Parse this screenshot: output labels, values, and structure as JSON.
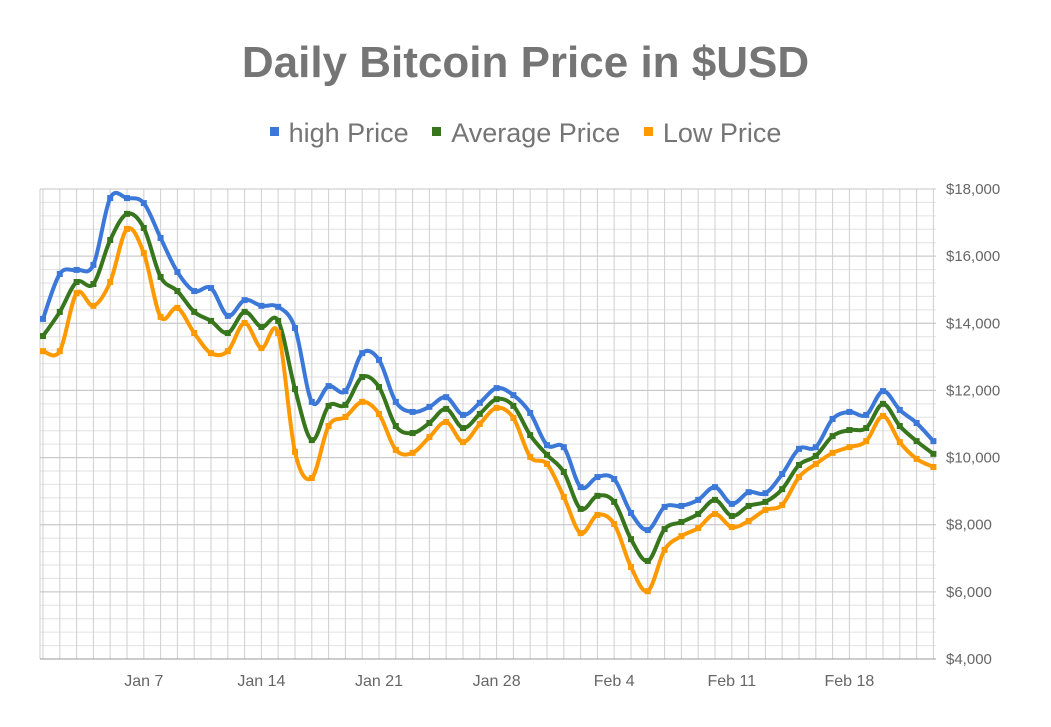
{
  "chart_data": {
    "type": "line",
    "title": "Daily Bitcoin Price in $USD",
    "legend_position": "top",
    "grid": true,
    "x": [
      "Jan 1",
      "Jan 2",
      "Jan 3",
      "Jan 4",
      "Jan 5",
      "Jan 6",
      "Jan 7",
      "Jan 8",
      "Jan 9",
      "Jan 10",
      "Jan 11",
      "Jan 12",
      "Jan 13",
      "Jan 14",
      "Jan 15",
      "Jan 16",
      "Jan 17",
      "Jan 18",
      "Jan 19",
      "Jan 20",
      "Jan 21",
      "Jan 22",
      "Jan 23",
      "Jan 24",
      "Jan 25",
      "Jan 26",
      "Jan 27",
      "Jan 28",
      "Jan 29",
      "Jan 30",
      "Jan 31",
      "Feb 1",
      "Feb 2",
      "Feb 3",
      "Feb 4",
      "Feb 5",
      "Feb 6",
      "Feb 7",
      "Feb 8",
      "Feb 9",
      "Feb 10",
      "Feb 11",
      "Feb 12",
      "Feb 13",
      "Feb 14",
      "Feb 15",
      "Feb 16",
      "Feb 17",
      "Feb 18",
      "Feb 19",
      "Feb 20",
      "Feb 21",
      "Feb 22",
      "Feb 23"
    ],
    "x_tick_labels": [
      "Jan 7",
      "Jan 14",
      "Jan 21",
      "Jan 28",
      "Feb 4",
      "Feb 11",
      "Feb 18"
    ],
    "y_tick_labels": [
      "$4,000",
      "$6,000",
      "$8,000",
      "$10,000",
      "$12,000",
      "$14,000",
      "$16,000",
      "$18,000"
    ],
    "ylim": [
      4000,
      18000
    ],
    "y_axis_side": "right",
    "series": [
      {
        "name": "high Price",
        "color": "#3c78d8",
        "values": [
          14130,
          15470,
          15590,
          15740,
          17730,
          17730,
          17580,
          16540,
          15530,
          14960,
          15050,
          14220,
          14690,
          14520,
          14490,
          13860,
          11660,
          12130,
          11980,
          13110,
          12910,
          11660,
          11360,
          11510,
          11800,
          11270,
          11630,
          12070,
          11860,
          11330,
          10370,
          10310,
          9120,
          9420,
          9360,
          8350,
          7840,
          8530,
          8560,
          8740,
          9120,
          8620,
          8970,
          8940,
          9510,
          10260,
          10310,
          11150,
          11360,
          11270,
          11980,
          11420,
          11030,
          10490
        ]
      },
      {
        "name": "Average Price",
        "color": "#38761d",
        "values": [
          13620,
          14340,
          15230,
          15170,
          16480,
          17260,
          16840,
          15380,
          14960,
          14340,
          14070,
          13710,
          14340,
          13890,
          14070,
          12040,
          10520,
          11540,
          11570,
          12400,
          12100,
          10940,
          10730,
          11030,
          11450,
          10880,
          11300,
          11740,
          11540,
          10670,
          10080,
          9570,
          8470,
          8860,
          8680,
          7570,
          6920,
          7870,
          8080,
          8320,
          8740,
          8260,
          8560,
          8680,
          9060,
          9780,
          10050,
          10640,
          10820,
          10880,
          11600,
          10940,
          10490,
          10110
        ]
      },
      {
        "name": "Low Price",
        "color": "#ff9900",
        "values": [
          13170,
          13170,
          14900,
          14520,
          15230,
          16810,
          16090,
          14190,
          14460,
          13710,
          13110,
          13170,
          14010,
          13260,
          13710,
          10170,
          9390,
          10940,
          11210,
          11660,
          11300,
          10230,
          10140,
          10610,
          11060,
          10460,
          11000,
          11480,
          11180,
          10020,
          9810,
          8830,
          7750,
          8290,
          8020,
          6740,
          6020,
          7250,
          7660,
          7900,
          8320,
          7930,
          8110,
          8440,
          8590,
          9420,
          9810,
          10140,
          10310,
          10490,
          11240,
          10460,
          9960,
          9720
        ]
      }
    ]
  }
}
